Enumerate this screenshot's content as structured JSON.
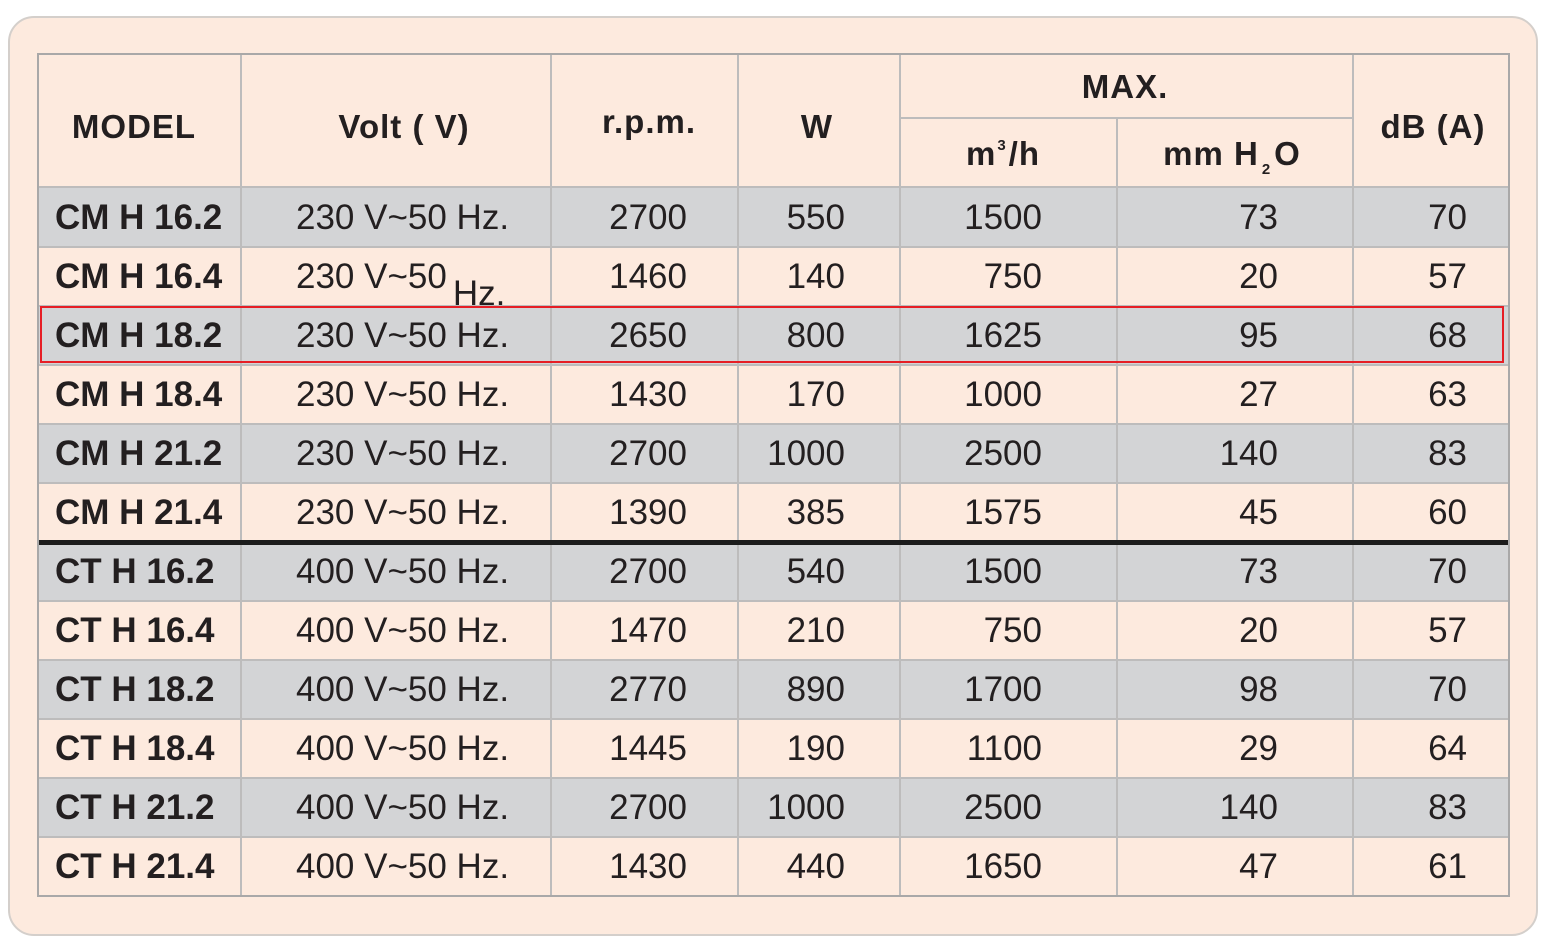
{
  "table": {
    "headers": {
      "model": "MODEL",
      "volt": "Volt ( V)",
      "rpm": "r.p.m.",
      "w": "W",
      "max": "MAX.",
      "m3h_base": "m",
      "m3h_sup": "3",
      "m3h_tail": "/h",
      "mmh2o_head": "mm  H",
      "mmh2o_sub": "2",
      "mmh2o_tail": "O",
      "db": "dB (A)"
    },
    "rows": [
      {
        "model": "CM H 16.2",
        "volt": "230 V~50 Hz.",
        "rpm": "2700",
        "w": "550",
        "m3h": "1500",
        "mmh2o": "73",
        "db": "70"
      },
      {
        "model": "CM H 16.4",
        "volt": "230 V~50",
        "volt_hz": "Hz.",
        "rpm": "1460",
        "w": "140",
        "m3h": "750",
        "mmh2o": "20",
        "db": "57"
      },
      {
        "model": "CM H 18.2",
        "volt": "230 V~50 Hz.",
        "rpm": "2650",
        "w": "800",
        "m3h": "1625",
        "mmh2o": "95",
        "db": "68"
      },
      {
        "model": "CM H 18.4",
        "volt": "230 V~50 Hz.",
        "rpm": "1430",
        "w": "170",
        "m3h": "1000",
        "mmh2o": "27",
        "db": "63"
      },
      {
        "model": "CM H 21.2",
        "volt": "230 V~50 Hz.",
        "rpm": "2700",
        "w": "1000",
        "m3h": "2500",
        "mmh2o": "140",
        "db": "83"
      },
      {
        "model": "CM H 21.4",
        "volt": "230 V~50 Hz.",
        "rpm": "1390",
        "w": "385",
        "m3h": "1575",
        "mmh2o": "45",
        "db": "60"
      },
      {
        "model": "CT H 16.2",
        "volt": "400 V~50 Hz.",
        "rpm": "2700",
        "w": "540",
        "m3h": "1500",
        "mmh2o": "73",
        "db": "70"
      },
      {
        "model": "CT H 16.4",
        "volt": "400 V~50 Hz.",
        "rpm": "1470",
        "w": "210",
        "m3h": "750",
        "mmh2o": "20",
        "db": "57"
      },
      {
        "model": "CT H 18.2",
        "volt": "400 V~50 Hz.",
        "rpm": "2770",
        "w": "890",
        "m3h": "1700",
        "mmh2o": "98",
        "db": "70"
      },
      {
        "model": "CT H 18.4",
        "volt": "400 V~50 Hz.",
        "rpm": "1445",
        "w": "190",
        "m3h": "1100",
        "mmh2o": "29",
        "db": "64"
      },
      {
        "model": "CT H 21.2",
        "volt": "400 V~50 Hz.",
        "rpm": "2700",
        "w": "1000",
        "m3h": "2500",
        "mmh2o": "140",
        "db": "83"
      },
      {
        "model": "CT H 21.4",
        "volt": "400 V~50 Hz.",
        "rpm": "1430",
        "w": "440",
        "m3h": "1650",
        "mmh2o": "47",
        "db": "61"
      }
    ]
  },
  "colors": {
    "panel_background": "#fdeade",
    "shaded_row": "#d3d4d6",
    "highlight_border": "#e61e25"
  },
  "highlighted_model": "CM H 18.2"
}
